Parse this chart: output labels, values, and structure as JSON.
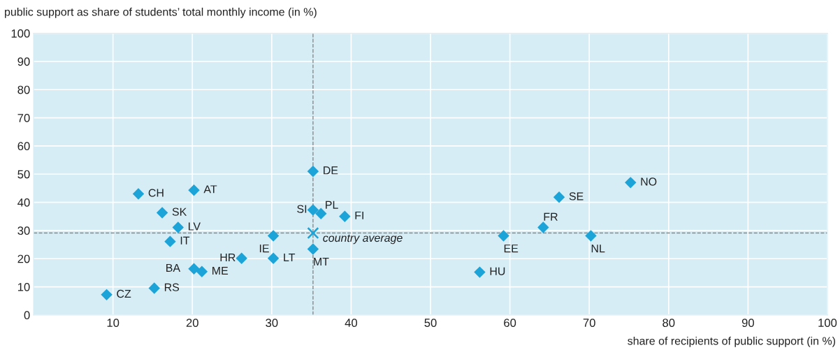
{
  "chart_data": {
    "type": "scatter",
    "xlabel": "share of recipients of public support (in %)",
    "ylabel": "public support as share of students’ total monthly income (in %)",
    "series": [
      {
        "color": "#1ca3d8",
        "marker": "diamond",
        "x": [
          9.2,
          15.2,
          20.2,
          21.2,
          13.2,
          20.2,
          16.2,
          18.2,
          17.2,
          26.2,
          30.2,
          30.2,
          35.2,
          35.2,
          36.2,
          39.2,
          35.2,
          56.2,
          59.2,
          64.2,
          66.2,
          70.2,
          75.2
        ],
        "values": [
          7.2,
          9.5,
          16.4,
          15.4,
          43,
          44.3,
          36.3,
          31.1,
          26.1,
          20.1,
          20.1,
          28.1,
          51,
          37.3,
          36,
          35,
          23.4,
          15.2,
          28.1,
          31.1,
          41.8,
          28.1,
          47
        ]
      },
      {
        "color": "#1ca3d8",
        "marker": "cross",
        "x": [
          35.2
        ],
        "values": [
          29.1
        ]
      }
    ],
    "annotations": [
      {
        "text": "CZ",
        "x": 9.2,
        "y": 7.2
      },
      {
        "text": "RS",
        "x": 15.2,
        "y": 9.5
      },
      {
        "text": "BA",
        "x": 20.2,
        "y": 16.4
      },
      {
        "text": "ME",
        "x": 21.2,
        "y": 15.4
      },
      {
        "text": "CH",
        "x": 13.2,
        "y": 43
      },
      {
        "text": "AT",
        "x": 20.2,
        "y": 44.3
      },
      {
        "text": "SK",
        "x": 16.2,
        "y": 36.3
      },
      {
        "text": "LV",
        "x": 18.2,
        "y": 31.1
      },
      {
        "text": "IT",
        "x": 17.2,
        "y": 26.1
      },
      {
        "text": "HR",
        "x": 26.2,
        "y": 20.1
      },
      {
        "text": "LT",
        "x": 30.2,
        "y": 20.1
      },
      {
        "text": "IE",
        "x": 30.2,
        "y": 28.1
      },
      {
        "text": "DE",
        "x": 35.2,
        "y": 51
      },
      {
        "text": "SI",
        "x": 35.2,
        "y": 37.3
      },
      {
        "text": "PL",
        "x": 36.2,
        "y": 36
      },
      {
        "text": "FI",
        "x": 39.2,
        "y": 35
      },
      {
        "text": "MT",
        "x": 35.2,
        "y": 23.4
      },
      {
        "text": "HU",
        "x": 56.2,
        "y": 15.2
      },
      {
        "text": "EE",
        "x": 59.2,
        "y": 28.1
      },
      {
        "text": "FR",
        "x": 64.2,
        "y": 31.1
      },
      {
        "text": "SE",
        "x": 66.2,
        "y": 41.8
      },
      {
        "text": "NL",
        "x": 70.2,
        "y": 28.1
      },
      {
        "text": "NO",
        "x": 75.2,
        "y": 47
      },
      {
        "text": "country average",
        "x": 35.2,
        "y": 29.1
      }
    ],
    "ref_lines": [
      {
        "axis": "x",
        "value": 35.2,
        "color": "#888888",
        "line_style": "dashed"
      },
      {
        "axis": "y",
        "value": 29.1,
        "color": "#888888",
        "line_style": "dashed"
      }
    ],
    "xlim": [
      0,
      100
    ],
    "xticks": [
      10,
      20,
      30,
      40,
      50,
      60,
      70,
      80,
      90,
      100
    ],
    "ylim": [
      0,
      100
    ],
    "yticks": [
      0,
      10,
      20,
      30,
      40,
      50,
      60,
      70,
      80,
      90,
      100
    ],
    "grid": true
  }
}
